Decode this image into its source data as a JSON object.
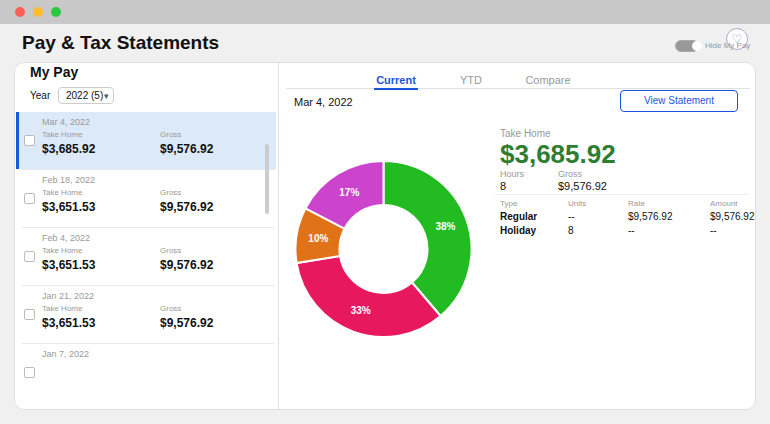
{
  "chart_data": {
    "type": "pie",
    "title": "Pay & Tax Statements",
    "values": [
      38,
      33,
      10,
      17
    ],
    "value_labels": [
      "38%",
      "33%",
      "10%",
      "17%"
    ],
    "colors": [
      "#22bb22",
      "#e8185e",
      "#e07318",
      "#cc44cc"
    ],
    "data_labels": true,
    "annotations": [
      "Hide My Pay",
      "♡",
      "My Pay",
      "Year",
      "2022 (5)",
      "▾",
      "Current",
      "YTD",
      "Compare",
      "Mar 4, 2022",
      "View Statement",
      "Take Home",
      "$3,685.92",
      "Hours",
      "Gross",
      "8",
      "$9,576.92",
      "Type",
      "Units",
      "Rate",
      "Amount",
      "Regular",
      "--",
      "$9,576.92",
      "$9,576.92",
      "Holiday",
      "8",
      "--",
      "--",
      "Mar 4, 2022",
      "Take Home",
      "$3,685.92",
      "Gross",
      "$9,576.92",
      "Feb 18, 2022",
      "Take Home",
      "$3,651.53",
      "Gross",
      "$9,576.92",
      "Feb 4, 2022",
      "Take Home",
      "$3,651.53",
      "Gross",
      "$9,576.92",
      "Jan 21, 2022",
      "Take Home",
      "$3,651.53",
      "Gross",
      "$9,576.92",
      "Jan 7, 2022"
    ]
  }
}
